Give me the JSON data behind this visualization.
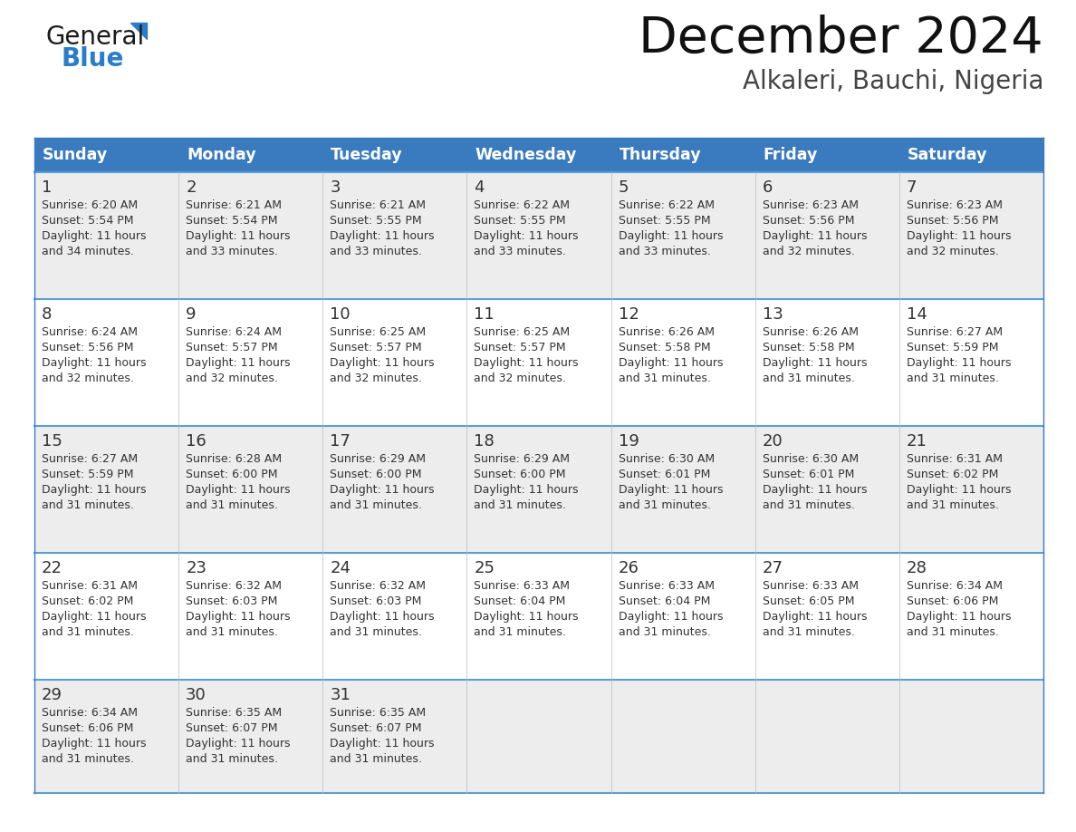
{
  "title": "December 2024",
  "subtitle": "Alkaleri, Bauchi, Nigeria",
  "header_color": "#3a7abf",
  "header_text_color": "#ffffff",
  "cell_bg_even": "#ededee",
  "cell_bg_odd": "#ffffff",
  "border_color": "#3a7abf",
  "row_divider_color": "#5a9fd4",
  "text_color": "#333333",
  "days_of_week": [
    "Sunday",
    "Monday",
    "Tuesday",
    "Wednesday",
    "Thursday",
    "Friday",
    "Saturday"
  ],
  "weeks": [
    [
      {
        "day": 1,
        "sunrise": "6:20 AM",
        "sunset": "5:54 PM",
        "daylight_min": "34"
      },
      {
        "day": 2,
        "sunrise": "6:21 AM",
        "sunset": "5:54 PM",
        "daylight_min": "33"
      },
      {
        "day": 3,
        "sunrise": "6:21 AM",
        "sunset": "5:55 PM",
        "daylight_min": "33"
      },
      {
        "day": 4,
        "sunrise": "6:22 AM",
        "sunset": "5:55 PM",
        "daylight_min": "33"
      },
      {
        "day": 5,
        "sunrise": "6:22 AM",
        "sunset": "5:55 PM",
        "daylight_min": "33"
      },
      {
        "day": 6,
        "sunrise": "6:23 AM",
        "sunset": "5:56 PM",
        "daylight_min": "32"
      },
      {
        "day": 7,
        "sunrise": "6:23 AM",
        "sunset": "5:56 PM",
        "daylight_min": "32"
      }
    ],
    [
      {
        "day": 8,
        "sunrise": "6:24 AM",
        "sunset": "5:56 PM",
        "daylight_min": "32"
      },
      {
        "day": 9,
        "sunrise": "6:24 AM",
        "sunset": "5:57 PM",
        "daylight_min": "32"
      },
      {
        "day": 10,
        "sunrise": "6:25 AM",
        "sunset": "5:57 PM",
        "daylight_min": "32"
      },
      {
        "day": 11,
        "sunrise": "6:25 AM",
        "sunset": "5:57 PM",
        "daylight_min": "32"
      },
      {
        "day": 12,
        "sunrise": "6:26 AM",
        "sunset": "5:58 PM",
        "daylight_min": "31"
      },
      {
        "day": 13,
        "sunrise": "6:26 AM",
        "sunset": "5:58 PM",
        "daylight_min": "31"
      },
      {
        "day": 14,
        "sunrise": "6:27 AM",
        "sunset": "5:59 PM",
        "daylight_min": "31"
      }
    ],
    [
      {
        "day": 15,
        "sunrise": "6:27 AM",
        "sunset": "5:59 PM",
        "daylight_min": "31"
      },
      {
        "day": 16,
        "sunrise": "6:28 AM",
        "sunset": "6:00 PM",
        "daylight_min": "31"
      },
      {
        "day": 17,
        "sunrise": "6:29 AM",
        "sunset": "6:00 PM",
        "daylight_min": "31"
      },
      {
        "day": 18,
        "sunrise": "6:29 AM",
        "sunset": "6:00 PM",
        "daylight_min": "31"
      },
      {
        "day": 19,
        "sunrise": "6:30 AM",
        "sunset": "6:01 PM",
        "daylight_min": "31"
      },
      {
        "day": 20,
        "sunrise": "6:30 AM",
        "sunset": "6:01 PM",
        "daylight_min": "31"
      },
      {
        "day": 21,
        "sunrise": "6:31 AM",
        "sunset": "6:02 PM",
        "daylight_min": "31"
      }
    ],
    [
      {
        "day": 22,
        "sunrise": "6:31 AM",
        "sunset": "6:02 PM",
        "daylight_min": "31"
      },
      {
        "day": 23,
        "sunrise": "6:32 AM",
        "sunset": "6:03 PM",
        "daylight_min": "31"
      },
      {
        "day": 24,
        "sunrise": "6:32 AM",
        "sunset": "6:03 PM",
        "daylight_min": "31"
      },
      {
        "day": 25,
        "sunrise": "6:33 AM",
        "sunset": "6:04 PM",
        "daylight_min": "31"
      },
      {
        "day": 26,
        "sunrise": "6:33 AM",
        "sunset": "6:04 PM",
        "daylight_min": "31"
      },
      {
        "day": 27,
        "sunrise": "6:33 AM",
        "sunset": "6:05 PM",
        "daylight_min": "31"
      },
      {
        "day": 28,
        "sunrise": "6:34 AM",
        "sunset": "6:06 PM",
        "daylight_min": "31"
      }
    ],
    [
      {
        "day": 29,
        "sunrise": "6:34 AM",
        "sunset": "6:06 PM",
        "daylight_min": "31"
      },
      {
        "day": 30,
        "sunrise": "6:35 AM",
        "sunset": "6:07 PM",
        "daylight_min": "31"
      },
      {
        "day": 31,
        "sunrise": "6:35 AM",
        "sunset": "6:07 PM",
        "daylight_min": "31"
      },
      null,
      null,
      null,
      null
    ]
  ],
  "logo_color_general": "#1a1a1a",
  "logo_color_blue": "#2a7dc9"
}
